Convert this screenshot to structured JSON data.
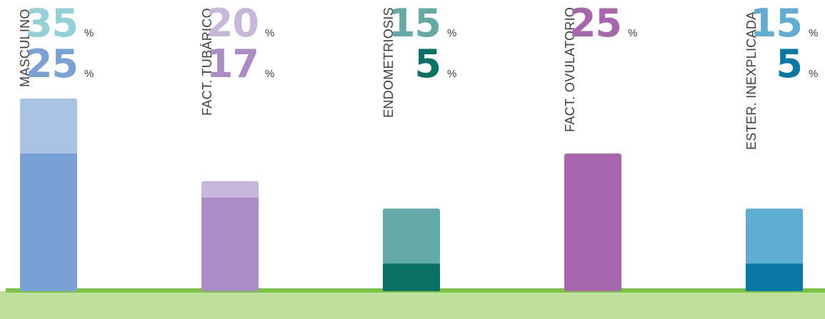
{
  "chart_data": {
    "type": "bar",
    "stacked": "overlay",
    "categories": [
      "MASCULINO",
      "FACT. TUBÁRICO",
      "ENDOMETRIOSIS",
      "FACT. OVULATORIO",
      "ESTER. INEXPLICADA"
    ],
    "series": [
      {
        "values": [
          35,
          20,
          15,
          25,
          15
        ]
      },
      {
        "values": [
          25,
          17,
          5,
          null,
          5
        ]
      }
    ],
    "unit": "%",
    "colors": {
      "light": [
        "#a9c3e3",
        "#c8b6db",
        "#64aaa6",
        "#a766ad",
        "#5fadd2"
      ],
      "dark": [
        "#79a1d5",
        "#a98dc4",
        "#0a7264",
        "#a766ad",
        "#0a78a5"
      ]
    },
    "label_colors": {
      "top": [
        "#93d1d8",
        "#c8b6db",
        "#64aaa6",
        "#a766ad",
        "#5fadd2"
      ],
      "bottom": [
        "#79a1d5",
        "#a98dc4",
        "#0a7264",
        null,
        "#0a78a5"
      ]
    },
    "ground_color": "#bfe09b",
    "ground_line_color": "#7dc243",
    "ylim": [
      0,
      35
    ]
  }
}
